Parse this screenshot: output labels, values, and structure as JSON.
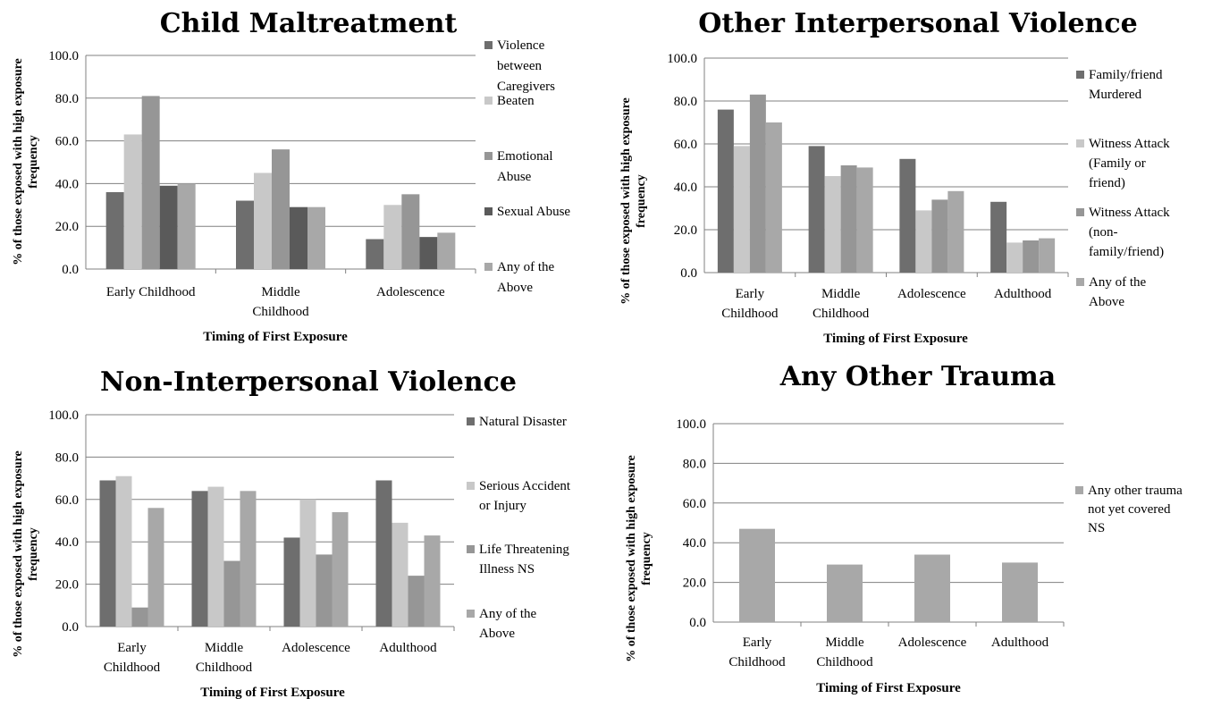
{
  "chart_data": [
    {
      "type": "bar",
      "title": "Child Maltreatment",
      "xlabel": "Timing of First Exposure",
      "ylabel": "% of those exposed with high exposure frequency",
      "ylim": [
        0,
        100
      ],
      "yticks": [
        "0.0",
        "20.0",
        "40.0",
        "60.0",
        "80.0",
        "100.0"
      ],
      "categories": [
        [
          "Early Childhood"
        ],
        [
          "Middle",
          "Childhood"
        ],
        [
          "Adolescence"
        ]
      ],
      "grid": true,
      "legend_position": "right",
      "series": [
        {
          "name": [
            "Violence",
            "between",
            "Caregivers"
          ],
          "color": "#6e6e6e",
          "values": [
            36,
            32,
            14
          ]
        },
        {
          "name": [
            "Beaten"
          ],
          "color": "#c8c8c8",
          "values": [
            63,
            45,
            30
          ]
        },
        {
          "name": [
            "Emotional",
            "Abuse"
          ],
          "color": "#969696",
          "values": [
            81,
            56,
            35
          ]
        },
        {
          "name": [
            "Sexual Abuse"
          ],
          "color": "#5a5a5a",
          "values": [
            39,
            29,
            15
          ]
        },
        {
          "name": [
            "Any of the",
            "Above"
          ],
          "color": "#a8a8a8",
          "values": [
            40,
            29,
            17
          ]
        }
      ]
    },
    {
      "type": "bar",
      "title": "Other Interpersonal Violence",
      "xlabel": "Timing of First Exposure",
      "ylabel": "% of those exposed with high exposure frequency",
      "ylim": [
        0,
        100
      ],
      "yticks": [
        "0.0",
        "20.0",
        "40.0",
        "60.0",
        "80.0",
        "100.0"
      ],
      "categories": [
        [
          "Early",
          "Childhood"
        ],
        [
          "Middle",
          "Childhood"
        ],
        [
          "Adolescence"
        ],
        [
          "Adulthood"
        ]
      ],
      "grid": true,
      "legend_position": "right",
      "series": [
        {
          "name": [
            "Family/friend",
            "Murdered"
          ],
          "color": "#6e6e6e",
          "values": [
            76,
            59,
            53,
            33
          ]
        },
        {
          "name": [
            "Witness Attack",
            "(Family or",
            "friend)"
          ],
          "color": "#c8c8c8",
          "values": [
            59,
            45,
            29,
            14
          ]
        },
        {
          "name": [
            "Witness Attack",
            "(non-",
            "family/friend)"
          ],
          "color": "#969696",
          "values": [
            83,
            50,
            34,
            15
          ]
        },
        {
          "name": [
            "Any of the",
            "Above"
          ],
          "color": "#a8a8a8",
          "values": [
            70,
            49,
            38,
            16
          ]
        }
      ]
    },
    {
      "type": "bar",
      "title": "Non-Interpersonal Violence",
      "xlabel": "Timing of First Exposure",
      "ylabel": "% of those exposed with high exposure frequency",
      "ylim": [
        0,
        100
      ],
      "yticks": [
        "0.0",
        "20.0",
        "40.0",
        "60.0",
        "80.0",
        "100.0"
      ],
      "categories": [
        [
          "Early",
          "Childhood"
        ],
        [
          "Middle",
          "Childhood"
        ],
        [
          "Adolescence"
        ],
        [
          "Adulthood"
        ]
      ],
      "grid": true,
      "legend_position": "right",
      "series": [
        {
          "name": [
            "Natural Disaster"
          ],
          "color": "#6e6e6e",
          "values": [
            69,
            64,
            42,
            69
          ]
        },
        {
          "name": [
            "Serious Accident",
            "or Injury"
          ],
          "color": "#c8c8c8",
          "values": [
            71,
            66,
            60,
            49
          ]
        },
        {
          "name": [
            "Life Threatening",
            "Illness NS"
          ],
          "color": "#969696",
          "values": [
            9,
            31,
            34,
            24
          ]
        },
        {
          "name": [
            "Any of the",
            "Above"
          ],
          "color": "#a8a8a8",
          "values": [
            56,
            64,
            54,
            43
          ]
        }
      ]
    },
    {
      "type": "bar",
      "title": "Any Other Trauma",
      "xlabel": "Timing of First Exposure",
      "ylabel": "% of those exposed with high exposure frequency",
      "ylim": [
        0,
        100
      ],
      "yticks": [
        "0.0",
        "20.0",
        "40.0",
        "60.0",
        "80.0",
        "100.0"
      ],
      "categories": [
        [
          "Early",
          "Childhood"
        ],
        [
          "Middle",
          "Childhood"
        ],
        [
          "Adolescence"
        ],
        [
          "Adulthood"
        ]
      ],
      "grid": true,
      "legend_position": "right",
      "series": [
        {
          "name": [
            "Any other trauma",
            "not yet covered",
            "NS"
          ],
          "color": "#a8a8a8",
          "values": [
            47,
            29,
            34,
            30
          ]
        }
      ]
    }
  ]
}
